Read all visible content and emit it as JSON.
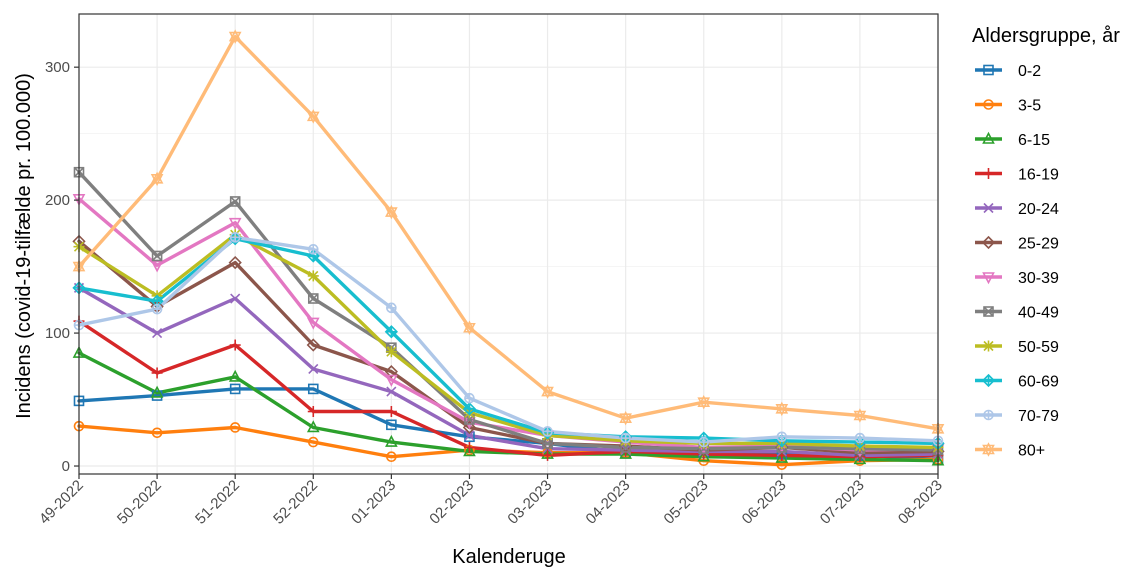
{
  "chart_data": {
    "type": "line",
    "title": "",
    "xlabel": "Kalenderuge",
    "ylabel": "Incidens (covid-19-tilfælde pr. 100.000)",
    "ylim": [
      -6,
      340
    ],
    "yticks": [
      0,
      100,
      200,
      300
    ],
    "grid": true,
    "legend_position": "right",
    "legend_title": "Aldersgruppe, år",
    "categories": [
      "49-2022",
      "50-2022",
      "51-2022",
      "52-2022",
      "01-2023",
      "02-2023",
      "03-2023",
      "04-2023",
      "05-2023",
      "06-2023",
      "07-2023",
      "08-2023"
    ],
    "series": [
      {
        "name": "0-2",
        "color": "#1f77b4",
        "marker": "square",
        "values": [
          49,
          53,
          58,
          58,
          31,
          22,
          17,
          10,
          10,
          9,
          8,
          5
        ]
      },
      {
        "name": "3-5",
        "color": "#ff7f0e",
        "marker": "circle",
        "values": [
          30,
          25,
          29,
          18,
          7,
          12,
          10,
          10,
          4,
          1,
          4,
          5
        ]
      },
      {
        "name": "6-15",
        "color": "#2ca02c",
        "marker": "triangle",
        "values": [
          85,
          55,
          67,
          29,
          18,
          11,
          9,
          9,
          7,
          6,
          5,
          4
        ]
      },
      {
        "name": "16-19",
        "color": "#d62728",
        "marker": "plus",
        "values": [
          109,
          70,
          91,
          41,
          41,
          14,
          8,
          11,
          9,
          8,
          7,
          8
        ]
      },
      {
        "name": "20-24",
        "color": "#9467bd",
        "marker": "x",
        "values": [
          134,
          100,
          126,
          73,
          56,
          23,
          13,
          12,
          11,
          11,
          8,
          9
        ]
      },
      {
        "name": "25-29",
        "color": "#8c564b",
        "marker": "diamond",
        "values": [
          169,
          120,
          153,
          91,
          71,
          29,
          17,
          15,
          12,
          14,
          10,
          11
        ]
      },
      {
        "name": "30-39",
        "color": "#e377c2",
        "marker": "triangle-down",
        "values": [
          201,
          151,
          183,
          108,
          65,
          33,
          23,
          18,
          14,
          15,
          12,
          13
        ]
      },
      {
        "name": "40-49",
        "color": "#7f7f7f",
        "marker": "square-x",
        "values": [
          221,
          158,
          199,
          126,
          89,
          35,
          17,
          14,
          13,
          14,
          13,
          12
        ]
      },
      {
        "name": "50-59",
        "color": "#bcbd22",
        "marker": "asterisk",
        "values": [
          165,
          128,
          174,
          143,
          86,
          40,
          23,
          19,
          17,
          17,
          15,
          14
        ]
      },
      {
        "name": "60-69",
        "color": "#17becf",
        "marker": "diamond-plus",
        "values": [
          134,
          124,
          171,
          158,
          101,
          43,
          25,
          22,
          21,
          19,
          18,
          17
        ]
      },
      {
        "name": "70-79",
        "color": "#aec7e8",
        "marker": "circle-plus",
        "values": [
          106,
          118,
          172,
          163,
          119,
          51,
          26,
          21,
          18,
          22,
          21,
          19
        ]
      },
      {
        "name": "80+",
        "color": "#ffbb78",
        "marker": "star",
        "values": [
          150,
          216,
          323,
          263,
          191,
          104,
          56,
          36,
          48,
          43,
          38,
          28
        ]
      }
    ]
  }
}
